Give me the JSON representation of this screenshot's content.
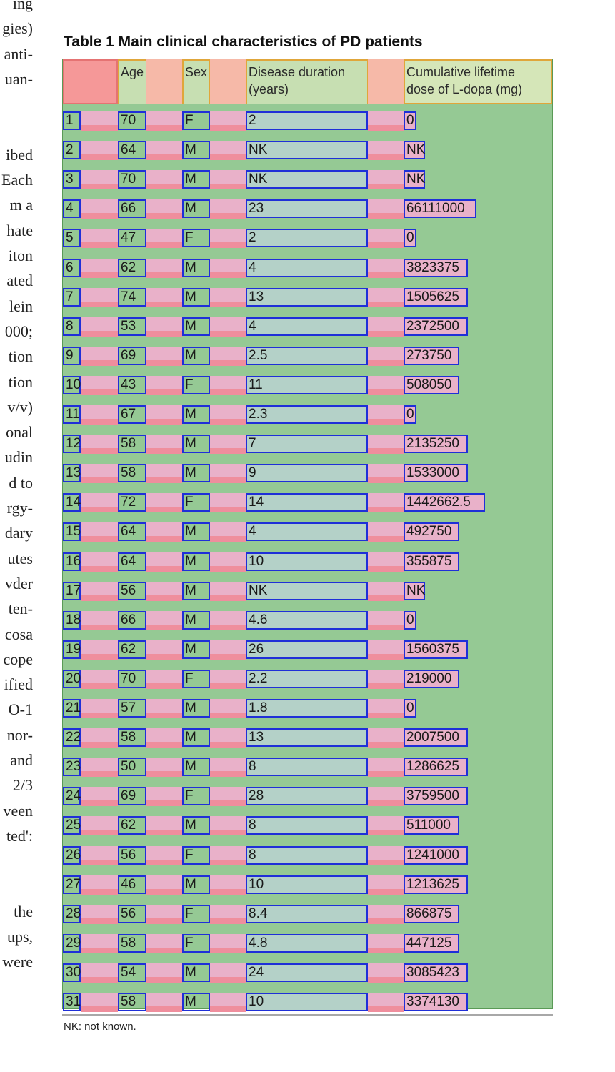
{
  "left_margin_text": [
    "ing",
    "gies)",
    "anti-",
    "uan-",
    "",
    "",
    "ibed",
    "Each",
    "m a",
    "hate",
    "iton",
    "ated",
    "lein",
    "000;",
    "tion",
    "tion",
    "v/v)",
    "onal",
    "udin",
    "d to",
    "rgy-",
    "dary",
    "utes",
    "vder",
    "ten-",
    "cosa",
    "cope",
    "ified",
    "O-1",
    "nor-",
    "and",
    "2/3",
    "veen",
    "ted':",
    "",
    "",
    "the",
    "ups,",
    "were"
  ],
  "caption": "Table 1 Main clinical characteristics of PD patients",
  "headers": {
    "age": "Age",
    "sex": "Sex",
    "duration_line1": "Disease duration",
    "duration_line2": "(years)",
    "dose_line1": "Cumulative lifetime",
    "dose_line2": "dose of L-dopa (mg)"
  },
  "rows": [
    {
      "id": "1",
      "age": "70",
      "sex": "F",
      "duration": "2",
      "dose": "0"
    },
    {
      "id": "2",
      "age": "64",
      "sex": "M",
      "duration": "NK",
      "dose": "NK"
    },
    {
      "id": "3",
      "age": "70",
      "sex": "M",
      "duration": "NK",
      "dose": "NK"
    },
    {
      "id": "4",
      "age": "66",
      "sex": "M",
      "duration": "23",
      "dose": "66111000"
    },
    {
      "id": "5",
      "age": "47",
      "sex": "F",
      "duration": "2",
      "dose": "0"
    },
    {
      "id": "6",
      "age": "62",
      "sex": "M",
      "duration": "4",
      "dose": "3823375"
    },
    {
      "id": "7",
      "age": "74",
      "sex": "M",
      "duration": "13",
      "dose": "1505625"
    },
    {
      "id": "8",
      "age": "53",
      "sex": "M",
      "duration": "4",
      "dose": "2372500"
    },
    {
      "id": "9",
      "age": "69",
      "sex": "M",
      "duration": "2.5",
      "dose": "273750"
    },
    {
      "id": "10",
      "age": "43",
      "sex": "F",
      "duration": "11",
      "dose": "508050"
    },
    {
      "id": "11",
      "age": "67",
      "sex": "M",
      "duration": "2.3",
      "dose": "0"
    },
    {
      "id": "12",
      "age": "58",
      "sex": "M",
      "duration": "7",
      "dose": "2135250"
    },
    {
      "id": "13",
      "age": "58",
      "sex": "M",
      "duration": "9",
      "dose": "1533000"
    },
    {
      "id": "14",
      "age": "72",
      "sex": "F",
      "duration": "14",
      "dose": "1442662.5"
    },
    {
      "id": "15",
      "age": "64",
      "sex": "M",
      "duration": "4",
      "dose": "492750"
    },
    {
      "id": "16",
      "age": "64",
      "sex": "M",
      "duration": "10",
      "dose": "355875"
    },
    {
      "id": "17",
      "age": "56",
      "sex": "M",
      "duration": "NK",
      "dose": "NK"
    },
    {
      "id": "18",
      "age": "66",
      "sex": "M",
      "duration": "4.6",
      "dose": "0"
    },
    {
      "id": "19",
      "age": "62",
      "sex": "M",
      "duration": "26",
      "dose": "1560375"
    },
    {
      "id": "20",
      "age": "70",
      "sex": "F",
      "duration": "2.2",
      "dose": "219000"
    },
    {
      "id": "21",
      "age": "57",
      "sex": "M",
      "duration": "1.8",
      "dose": "0"
    },
    {
      "id": "22",
      "age": "58",
      "sex": "M",
      "duration": "13",
      "dose": "2007500"
    },
    {
      "id": "23",
      "age": "50",
      "sex": "M",
      "duration": "8",
      "dose": "1286625"
    },
    {
      "id": "24",
      "age": "69",
      "sex": "F",
      "duration": "28",
      "dose": "3759500"
    },
    {
      "id": "25",
      "age": "62",
      "sex": "M",
      "duration": "8",
      "dose": "511000"
    },
    {
      "id": "26",
      "age": "56",
      "sex": "F",
      "duration": "8",
      "dose": "1241000"
    },
    {
      "id": "27",
      "age": "46",
      "sex": "M",
      "duration": "10",
      "dose": "1213625"
    },
    {
      "id": "28",
      "age": "56",
      "sex": "F",
      "duration": "8.4",
      "dose": "866875"
    },
    {
      "id": "29",
      "age": "58",
      "sex": "F",
      "duration": "4.8",
      "dose": "447125"
    },
    {
      "id": "30",
      "age": "54",
      "sex": "M",
      "duration": "24",
      "dose": "3085423"
    },
    {
      "id": "31",
      "age": "58",
      "sex": "M",
      "duration": "10",
      "dose": "3374130"
    }
  ],
  "footnote": "NK: not known."
}
